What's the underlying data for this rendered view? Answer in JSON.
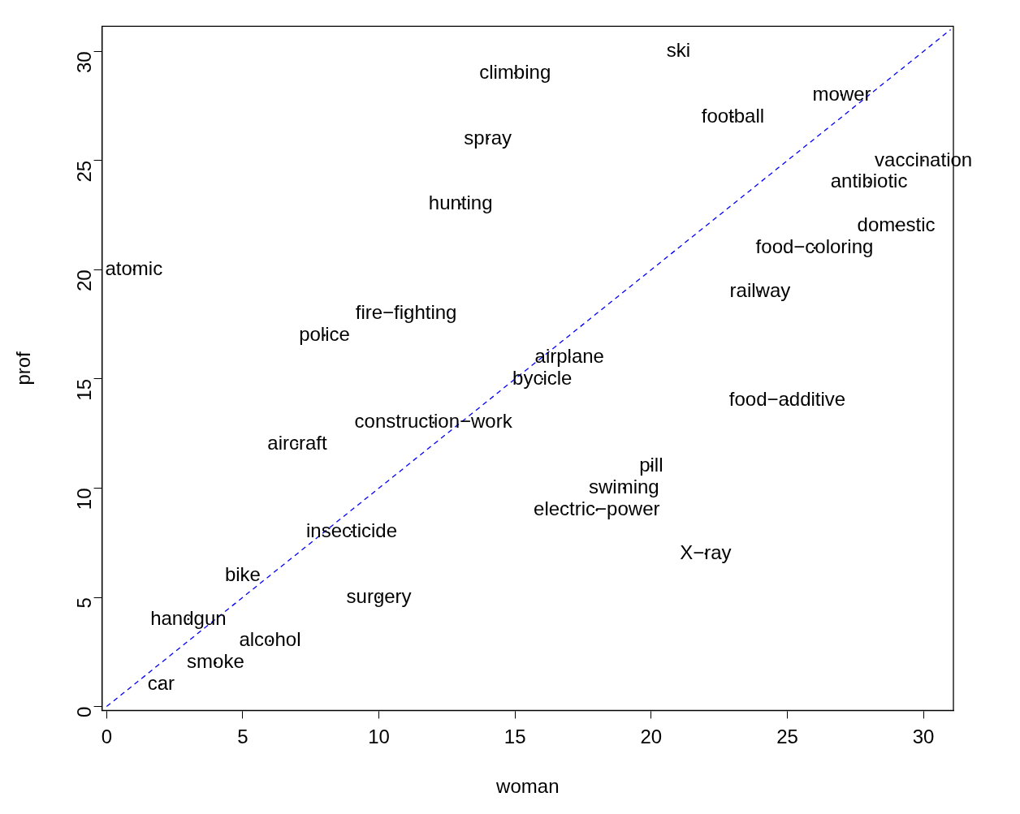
{
  "chart_data": {
    "type": "scatter",
    "xlabel": "woman",
    "ylabel": "prof",
    "xlim": [
      -0.17,
      31.1
    ],
    "ylim": [
      -0.18,
      31.15
    ],
    "xticks": [
      0,
      5,
      10,
      15,
      20,
      25,
      30
    ],
    "yticks": [
      0,
      5,
      10,
      15,
      20,
      25,
      30
    ],
    "grid": false,
    "legend": false,
    "series": [
      {
        "x": [
          21,
          15,
          27,
          23,
          14,
          30,
          28,
          13,
          29,
          26,
          1,
          24,
          11,
          8,
          17,
          16,
          25,
          12,
          7,
          20,
          19,
          18,
          9,
          22,
          5,
          10,
          3,
          6,
          4,
          2
        ],
        "values": [
          30,
          29,
          28,
          27,
          26,
          25,
          24,
          23,
          22,
          21,
          20,
          19,
          18,
          17,
          16,
          15,
          14,
          13,
          12,
          11,
          10,
          9,
          8,
          7,
          6,
          5,
          4,
          3,
          2,
          1
        ],
        "color": "#000000",
        "value_labels": [
          "ski",
          "climbing",
          "mower",
          "football",
          "spray",
          "vaccination",
          "antibiotic",
          "hunting",
          "domestic",
          "food−coloring",
          "atomic",
          "railway",
          "fire−fighting",
          "police",
          "airplane",
          "bycicle",
          "food−additive",
          "construction−work",
          "aircraft",
          "pill",
          "swiming",
          "electric−power",
          "insecticide",
          "X−ray",
          "bike",
          "surgery",
          "handgun",
          "alcohol",
          "smoke",
          "car"
        ]
      },
      {
        "type": "line",
        "x": [
          0,
          31
        ],
        "values": [
          0,
          31
        ],
        "color": "#0000ff",
        "line_style": "dashed"
      }
    ]
  }
}
